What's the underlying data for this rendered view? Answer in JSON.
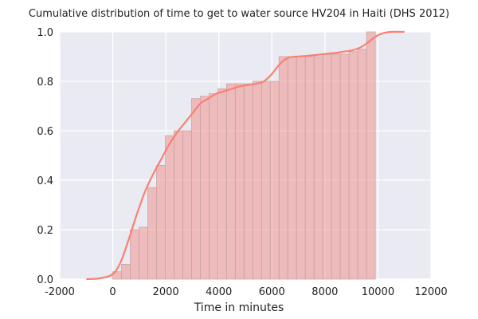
{
  "chart_data": {
    "type": "bar",
    "title": "Cumulative distribution of time to get to water source HV204 in Haiti (DHS 2012)",
    "xlabel": "Time in minutes",
    "ylabel": "",
    "xlim": [
      -2000,
      12000
    ],
    "ylim": [
      0,
      1.0
    ],
    "xticks": [
      -2000,
      0,
      2000,
      4000,
      6000,
      8000,
      10000,
      12000
    ],
    "yticks": [
      0.0,
      0.2,
      0.4,
      0.6,
      0.8,
      1.0
    ],
    "grid": true,
    "bin_edges": [
      0,
      330,
      660,
      990,
      1320,
      1650,
      1980,
      2310,
      2640,
      2970,
      3300,
      3630,
      3960,
      4290,
      4620,
      4950,
      5280,
      5610,
      5940,
      6270,
      6600,
      6930,
      7260,
      7590,
      7920,
      8250,
      8580,
      8910,
      9240,
      9570,
      9900
    ],
    "values": [
      0.03,
      0.06,
      0.2,
      0.21,
      0.37,
      0.46,
      0.58,
      0.6,
      0.6,
      0.73,
      0.74,
      0.75,
      0.77,
      0.79,
      0.79,
      0.79,
      0.8,
      0.8,
      0.8,
      0.9,
      0.9,
      0.9,
      0.9,
      0.9,
      0.91,
      0.91,
      0.91,
      0.92,
      0.93,
      1.0
    ],
    "kde_curve": {
      "x": [
        -1000,
        -500,
        0,
        300,
        600,
        900,
        1200,
        1500,
        1800,
        2100,
        2400,
        2700,
        3000,
        3300,
        3600,
        3900,
        4200,
        4500,
        4800,
        5100,
        5400,
        5700,
        6000,
        6300,
        6600,
        6900,
        7200,
        7500,
        7800,
        8100,
        8400,
        8700,
        9000,
        9300,
        9600,
        9900,
        10200,
        10500,
        11000
      ],
      "y": [
        0.0,
        0.003,
        0.02,
        0.07,
        0.16,
        0.26,
        0.35,
        0.42,
        0.48,
        0.54,
        0.59,
        0.63,
        0.67,
        0.71,
        0.73,
        0.75,
        0.76,
        0.77,
        0.78,
        0.785,
        0.79,
        0.8,
        0.83,
        0.87,
        0.895,
        0.9,
        0.902,
        0.905,
        0.908,
        0.912,
        0.915,
        0.92,
        0.925,
        0.935,
        0.955,
        0.98,
        0.995,
        1.0,
        1.0
      ]
    },
    "colors": {
      "bar_fill": "#f08c84",
      "bar_edge": "#c9a6a6",
      "line": "#fa8072",
      "plot_background": "#eaeaf2",
      "grid": "#ffffff"
    }
  }
}
